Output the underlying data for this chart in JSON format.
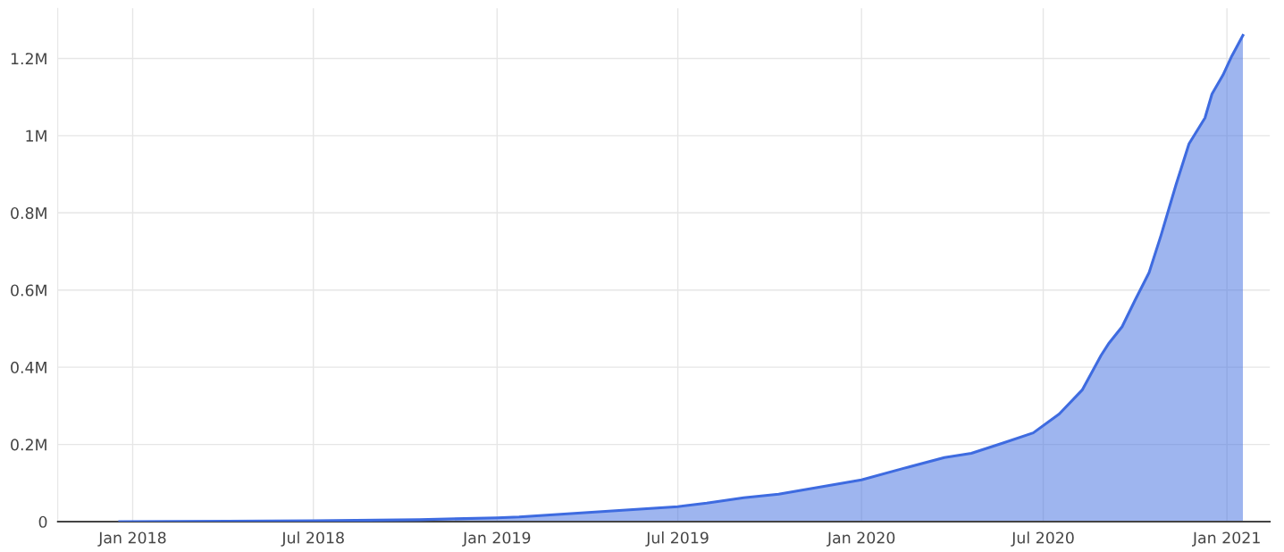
{
  "chart_data": {
    "type": "area",
    "x": [
      "2017-12-19",
      "2018-07-01",
      "2018-10-15",
      "2019-01-01",
      "2019-01-23",
      "2019-07-01",
      "2019-07-30",
      "2019-09-05",
      "2019-10-10",
      "2020-01-01",
      "2020-02-12",
      "2020-03-24",
      "2020-04-20",
      "2020-05-21",
      "2020-06-21",
      "2020-07-17",
      "2020-08-09",
      "2020-08-28",
      "2020-09-05",
      "2020-09-18",
      "2020-10-01",
      "2020-10-15",
      "2020-10-27",
      "2020-11-11",
      "2020-11-24",
      "2020-12-10",
      "2020-12-17",
      "2020-12-28",
      "2021-01-06",
      "2021-01-17"
    ],
    "series": [
      {
        "color": "#3e6be0",
        "values": [
          0,
          2000,
          5000,
          10000,
          12000,
          39000,
          48000,
          62000,
          71000,
          108000,
          138000,
          166000,
          177000,
          203000,
          230000,
          279000,
          341000,
          431000,
          463000,
          505000,
          574000,
          645000,
          742000,
          873000,
          979000,
          1046000,
          1108000,
          1157000,
          1207000,
          1260000
        ]
      }
    ],
    "xlim": [
      "2017-10-18",
      "2021-02-13"
    ],
    "xticks": [
      {
        "value": "2018-01-01",
        "label": "Jan 2018"
      },
      {
        "value": "2018-07-01",
        "label": "Jul 2018"
      },
      {
        "value": "2019-01-01",
        "label": "Jan 2019"
      },
      {
        "value": "2019-07-01",
        "label": "Jul 2019"
      },
      {
        "value": "2020-01-01",
        "label": "Jan 2020"
      },
      {
        "value": "2020-07-01",
        "label": "Jul 2020"
      },
      {
        "value": "2021-01-01",
        "label": "Jan 2021"
      }
    ],
    "ylim": [
      0,
      1330000
    ],
    "yticks": [
      0,
      {
        "value": 200000,
        "label": "0.2M"
      },
      {
        "value": 400000,
        "label": "0.4M"
      },
      {
        "value": 600000,
        "label": "0.6M"
      },
      {
        "value": 800000,
        "label": "0.8M"
      },
      {
        "value": 1000000,
        "label": "1M"
      },
      {
        "value": 1200000,
        "label": "1.2M"
      }
    ],
    "grid": true
  }
}
